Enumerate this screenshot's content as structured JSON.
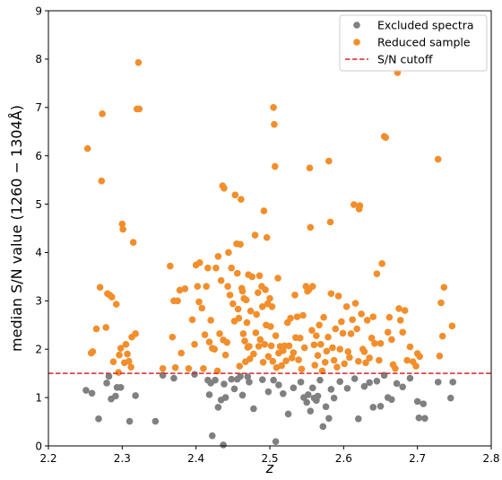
{
  "chart_data": {
    "type": "scatter",
    "title": "",
    "xlabel": "z",
    "ylabel": "median S/N value (1260 − 1304Å)",
    "xlim": [
      2.2,
      2.8
    ],
    "ylim": [
      0,
      9
    ],
    "x_ticks": [
      2.2,
      2.3,
      2.4,
      2.5,
      2.6,
      2.7,
      2.8
    ],
    "y_ticks": [
      0,
      1,
      2,
      3,
      4,
      5,
      6,
      7,
      8,
      9
    ],
    "x_tick_labels": [
      "2.2",
      "2.3",
      "2.4",
      "2.5",
      "2.6",
      "2.7",
      "2.8"
    ],
    "y_tick_labels": [
      "0",
      "1",
      "2",
      "3",
      "4",
      "5",
      "6",
      "7",
      "8",
      "9"
    ],
    "grid": false,
    "legend_position": "top-right",
    "cutoff": {
      "name": "S/N cutoff",
      "y": 1.5,
      "color": "#d62728",
      "style": "dashed"
    },
    "series": [
      {
        "name": "Excluded spectra",
        "color": "#808080",
        "points": [
          [
            2.251,
            1.15
          ],
          [
            2.259,
            1.09
          ],
          [
            2.268,
            0.56
          ],
          [
            2.279,
            1.3
          ],
          [
            2.282,
            1.44
          ],
          [
            2.285,
            0.97
          ],
          [
            2.291,
            1.03
          ],
          [
            2.293,
            1.21
          ],
          [
            2.298,
            1.21
          ],
          [
            2.31,
            0.51
          ],
          [
            2.318,
            1.04
          ],
          [
            2.345,
            0.51
          ],
          [
            2.355,
            1.46
          ],
          [
            2.37,
            1.4
          ],
          [
            2.398,
            1.48
          ],
          [
            2.416,
            1.36
          ],
          [
            2.418,
            1.06
          ],
          [
            2.42,
            1.3
          ],
          [
            2.422,
            0.21
          ],
          [
            2.426,
            1.36
          ],
          [
            2.43,
            0.8
          ],
          [
            2.434,
            0.95
          ],
          [
            2.437,
            0.02
          ],
          [
            2.438,
            1.28
          ],
          [
            2.44,
            1.0
          ],
          [
            2.448,
            1.38
          ],
          [
            2.452,
            1.18
          ],
          [
            2.456,
            1.38
          ],
          [
            2.46,
            1.44
          ],
          [
            2.463,
            1.05
          ],
          [
            2.47,
            1.43
          ],
          [
            2.472,
            1.32
          ],
          [
            2.478,
            0.77
          ],
          [
            2.49,
            1.37
          ],
          [
            2.498,
            1.12
          ],
          [
            2.505,
            1.36
          ],
          [
            2.508,
            0.09
          ],
          [
            2.512,
            1.26
          ],
          [
            2.518,
            1.08
          ],
          [
            2.525,
            0.66
          ],
          [
            2.532,
            1.2
          ],
          [
            2.542,
            1.32
          ],
          [
            2.546,
            1.0
          ],
          [
            2.55,
            0.9
          ],
          [
            2.552,
            1.06
          ],
          [
            2.555,
            0.72
          ],
          [
            2.558,
            1.2
          ],
          [
            2.56,
            0.99
          ],
          [
            2.563,
            0.94
          ],
          [
            2.565,
            1.03
          ],
          [
            2.568,
            1.36
          ],
          [
            2.572,
            0.4
          ],
          [
            2.576,
            0.81
          ],
          [
            2.58,
            0.57
          ],
          [
            2.583,
            1.17
          ],
          [
            2.587,
            0.99
          ],
          [
            2.595,
            1.33
          ],
          [
            2.605,
            1.19
          ],
          [
            2.615,
            1.39
          ],
          [
            2.62,
            0.56
          ],
          [
            2.628,
            1.23
          ],
          [
            2.635,
            1.31
          ],
          [
            2.64,
            0.8
          ],
          [
            2.645,
            1.34
          ],
          [
            2.65,
            0.82
          ],
          [
            2.655,
            1.46
          ],
          [
            2.66,
            1.0
          ],
          [
            2.665,
            0.96
          ],
          [
            2.672,
            1.29
          ],
          [
            2.68,
            1.22
          ],
          [
            2.69,
            1.4
          ],
          [
            2.7,
            0.92
          ],
          [
            2.702,
            0.58
          ],
          [
            2.708,
            0.87
          ],
          [
            2.71,
            0.57
          ],
          [
            2.728,
            1.32
          ],
          [
            2.745,
            0.99
          ],
          [
            2.748,
            1.32
          ]
        ]
      },
      {
        "name": "Reduced sample",
        "color": "#f28e2b",
        "points": [
          [
            2.253,
            6.15
          ],
          [
            2.258,
            1.92
          ],
          [
            2.26,
            1.95
          ],
          [
            2.265,
            2.42
          ],
          [
            2.27,
            3.28
          ],
          [
            2.272,
            5.48
          ],
          [
            2.273,
            6.87
          ],
          [
            2.278,
            2.45
          ],
          [
            2.28,
            3.15
          ],
          [
            2.283,
            3.12
          ],
          [
            2.286,
            3.08
          ],
          [
            2.288,
            1.74
          ],
          [
            2.292,
            2.93
          ],
          [
            2.295,
            1.52
          ],
          [
            2.296,
            1.88
          ],
          [
            2.298,
            2.02
          ],
          [
            2.3,
            4.59
          ],
          [
            2.301,
            4.48
          ],
          [
            2.303,
            1.72
          ],
          [
            2.305,
            2.1
          ],
          [
            2.307,
            1.9
          ],
          [
            2.309,
            1.75
          ],
          [
            2.312,
            1.63
          ],
          [
            2.313,
            2.25
          ],
          [
            2.315,
            4.21
          ],
          [
            2.318,
            2.32
          ],
          [
            2.32,
            6.97
          ],
          [
            2.322,
            7.93
          ],
          [
            2.323,
            6.97
          ],
          [
            2.355,
            1.6
          ],
          [
            2.365,
            3.72
          ],
          [
            2.368,
            2.25
          ],
          [
            2.37,
            3.0
          ],
          [
            2.372,
            1.62
          ],
          [
            2.375,
            3.0
          ],
          [
            2.378,
            3.22
          ],
          [
            2.38,
            1.92
          ],
          [
            2.385,
            3.25
          ],
          [
            2.39,
            1.6
          ],
          [
            2.395,
            2.61
          ],
          [
            2.398,
            2.1
          ],
          [
            2.4,
            3.74
          ],
          [
            2.402,
            3.3
          ],
          [
            2.404,
            2.98
          ],
          [
            2.405,
            3.79
          ],
          [
            2.408,
            2.85
          ],
          [
            2.41,
            1.6
          ],
          [
            2.412,
            2.3
          ],
          [
            2.414,
            3.3
          ],
          [
            2.416,
            3.68
          ],
          [
            2.418,
            2.15
          ],
          [
            2.42,
            2.6
          ],
          [
            2.422,
            2.02
          ],
          [
            2.425,
            2.0
          ],
          [
            2.427,
            3.68
          ],
          [
            2.429,
            1.55
          ],
          [
            2.43,
            3.92
          ],
          [
            2.432,
            2.32
          ],
          [
            2.434,
            3.42
          ],
          [
            2.436,
            5.38
          ],
          [
            2.437,
            2.19
          ],
          [
            2.438,
            5.33
          ],
          [
            2.44,
            1.88
          ],
          [
            2.442,
            2.14
          ],
          [
            2.443,
            3.3
          ],
          [
            2.444,
            4.0
          ],
          [
            2.446,
            3.12
          ],
          [
            2.448,
            3.68
          ],
          [
            2.45,
            2.94
          ],
          [
            2.452,
            2.58
          ],
          [
            2.453,
            5.19
          ],
          [
            2.455,
            4.18
          ],
          [
            2.456,
            3.57
          ],
          [
            2.457,
            2.83
          ],
          [
            2.458,
            2.64
          ],
          [
            2.459,
            1.65
          ],
          [
            2.46,
            4.17
          ],
          [
            2.461,
            5.1
          ],
          [
            2.462,
            3.26
          ],
          [
            2.463,
            3.2
          ],
          [
            2.464,
            2.32
          ],
          [
            2.465,
            3.05
          ],
          [
            2.466,
            2.17
          ],
          [
            2.467,
            1.74
          ],
          [
            2.468,
            3.02
          ],
          [
            2.469,
            2.55
          ],
          [
            2.47,
            2.04
          ],
          [
            2.471,
            3.54
          ],
          [
            2.472,
            2.06
          ],
          [
            2.473,
            1.8
          ],
          [
            2.474,
            2.79
          ],
          [
            2.476,
            3.5
          ],
          [
            2.478,
            1.9
          ],
          [
            2.48,
            4.36
          ],
          [
            2.481,
            2.34
          ],
          [
            2.482,
            2.72
          ],
          [
            2.484,
            3.17
          ],
          [
            2.485,
            2.06
          ],
          [
            2.486,
            3.52
          ],
          [
            2.487,
            2.2
          ],
          [
            2.489,
            3.3
          ],
          [
            2.49,
            2.88
          ],
          [
            2.491,
            1.73
          ],
          [
            2.492,
            4.86
          ],
          [
            2.493,
            2.1
          ],
          [
            2.494,
            3.23
          ],
          [
            2.495,
            2.5
          ],
          [
            2.496,
            4.31
          ],
          [
            2.497,
            2.94
          ],
          [
            2.498,
            1.85
          ],
          [
            2.5,
            3.05
          ],
          [
            2.501,
            2.47
          ],
          [
            2.502,
            2.07
          ],
          [
            2.503,
            2.88
          ],
          [
            2.504,
            1.75
          ],
          [
            2.505,
            7.0
          ],
          [
            2.506,
            6.65
          ],
          [
            2.507,
            5.78
          ],
          [
            2.508,
            2.28
          ],
          [
            2.509,
            1.62
          ],
          [
            2.511,
            3.47
          ],
          [
            2.512,
            1.92
          ],
          [
            2.514,
            2.06
          ],
          [
            2.516,
            1.66
          ],
          [
            2.518,
            1.97
          ],
          [
            2.52,
            2.07
          ],
          [
            2.522,
            1.76
          ],
          [
            2.524,
            2.55
          ],
          [
            2.526,
            2.07
          ],
          [
            2.528,
            2.64
          ],
          [
            2.53,
            1.82
          ],
          [
            2.532,
            1.93
          ],
          [
            2.534,
            3.12
          ],
          [
            2.535,
            2.24
          ],
          [
            2.537,
            2.67
          ],
          [
            2.539,
            1.78
          ],
          [
            2.541,
            2.23
          ],
          [
            2.543,
            1.59
          ],
          [
            2.545,
            2.7
          ],
          [
            2.547,
            2.03
          ],
          [
            2.549,
            3.3
          ],
          [
            2.551,
            3.2
          ],
          [
            2.553,
            3.23
          ],
          [
            2.554,
            5.75
          ],
          [
            2.555,
            4.52
          ],
          [
            2.557,
            2.39
          ],
          [
            2.558,
            3.3
          ],
          [
            2.56,
            2.09
          ],
          [
            2.561,
            1.67
          ],
          [
            2.563,
            2.28
          ],
          [
            2.565,
            1.87
          ],
          [
            2.567,
            2.5
          ],
          [
            2.569,
            2.1
          ],
          [
            2.571,
            1.55
          ],
          [
            2.573,
            2.66
          ],
          [
            2.575,
            1.73
          ],
          [
            2.577,
            1.96
          ],
          [
            2.579,
            2.25
          ],
          [
            2.58,
            5.89
          ],
          [
            2.582,
            4.63
          ],
          [
            2.583,
            3.15
          ],
          [
            2.585,
            2.03
          ],
          [
            2.587,
            1.77
          ],
          [
            2.589,
            2.42
          ],
          [
            2.591,
            1.63
          ],
          [
            2.593,
            3.1
          ],
          [
            2.595,
            2.0
          ],
          [
            2.597,
            2.57
          ],
          [
            2.599,
            2.33
          ],
          [
            2.601,
            1.7
          ],
          [
            2.604,
            2.88
          ],
          [
            2.606,
            1.95
          ],
          [
            2.608,
            1.83
          ],
          [
            2.61,
            2.32
          ],
          [
            2.612,
            2.61
          ],
          [
            2.614,
            4.99
          ],
          [
            2.616,
            2.95
          ],
          [
            2.618,
            2.42
          ],
          [
            2.62,
            1.75
          ],
          [
            2.621,
            4.9
          ],
          [
            2.622,
            4.97
          ],
          [
            2.624,
            2.73
          ],
          [
            2.626,
            2.0
          ],
          [
            2.628,
            1.95
          ],
          [
            2.63,
            1.72
          ],
          [
            2.632,
            2.6
          ],
          [
            2.635,
            1.82
          ],
          [
            2.638,
            2.23
          ],
          [
            2.64,
            2.67
          ],
          [
            2.642,
            2.12
          ],
          [
            2.645,
            3.56
          ],
          [
            2.648,
            1.77
          ],
          [
            2.65,
            2.12
          ],
          [
            2.652,
            3.77
          ],
          [
            2.655,
            6.4
          ],
          [
            2.657,
            6.38
          ],
          [
            2.66,
            2.35
          ],
          [
            2.662,
            2.66
          ],
          [
            2.665,
            2.2
          ],
          [
            2.667,
            1.68
          ],
          [
            2.67,
            1.6
          ],
          [
            2.673,
            7.72
          ],
          [
            2.675,
            2.84
          ],
          [
            2.677,
            2.6
          ],
          [
            2.68,
            2.35
          ],
          [
            2.683,
            2.8
          ],
          [
            2.686,
            1.77
          ],
          [
            2.69,
            2.05
          ],
          [
            2.694,
            1.74
          ],
          [
            2.698,
            1.65
          ],
          [
            2.7,
            1.91
          ],
          [
            2.703,
            1.85
          ],
          [
            2.728,
            5.93
          ],
          [
            2.73,
            1.86
          ],
          [
            2.732,
            2.96
          ],
          [
            2.734,
            2.27
          ],
          [
            2.736,
            3.28
          ],
          [
            2.747,
            2.48
          ]
        ]
      }
    ]
  }
}
